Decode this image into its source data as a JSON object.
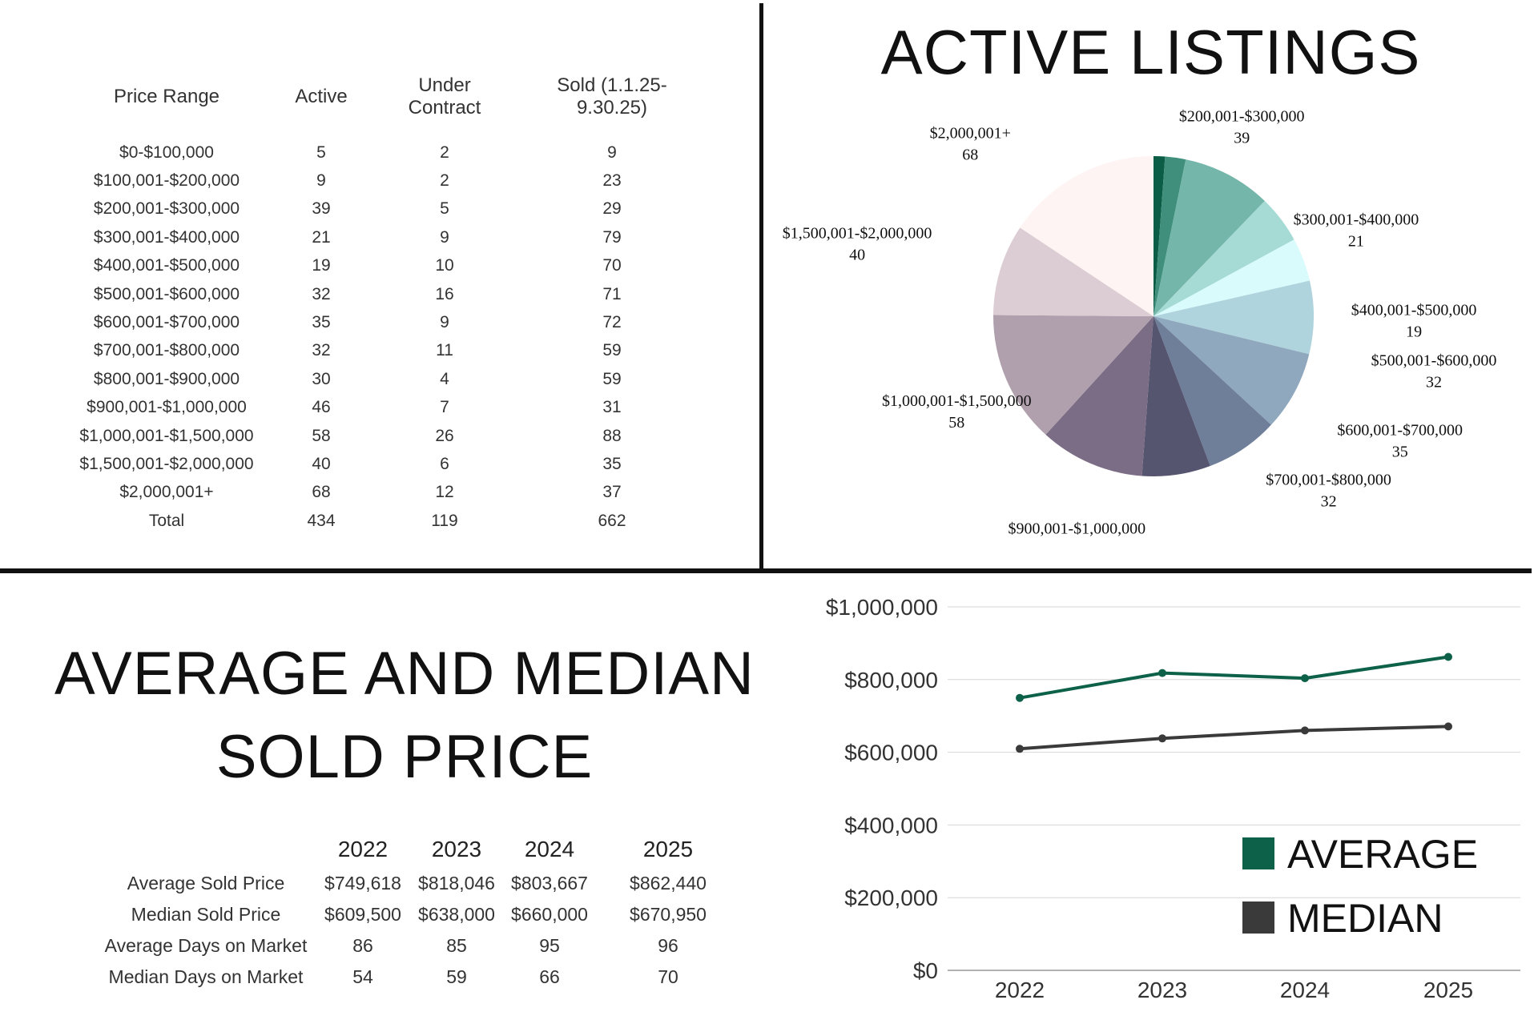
{
  "price_table": {
    "headers": [
      "Price Range",
      "Active",
      "Under Contract",
      "Sold (1.1.25-9.30.25)"
    ],
    "rows": [
      [
        "$0-$100,000",
        "5",
        "2",
        "9"
      ],
      [
        "$100,001-$200,000",
        "9",
        "2",
        "23"
      ],
      [
        "$200,001-$300,000",
        "39",
        "5",
        "29"
      ],
      [
        "$300,001-$400,000",
        "21",
        "9",
        "79"
      ],
      [
        "$400,001-$500,000",
        "19",
        "10",
        "70"
      ],
      [
        "$500,001-$600,000",
        "32",
        "16",
        "71"
      ],
      [
        "$600,001-$700,000",
        "35",
        "9",
        "72"
      ],
      [
        "$700,001-$800,000",
        "32",
        "11",
        "59"
      ],
      [
        "$800,001-$900,000",
        "30",
        "4",
        "59"
      ],
      [
        "$900,001-$1,000,000",
        "46",
        "7",
        "31"
      ],
      [
        "$1,000,001-$1,500,000",
        "58",
        "26",
        "88"
      ],
      [
        "$1,500,001-$2,000,000",
        "40",
        "6",
        "35"
      ],
      [
        "$2,000,001+",
        "68",
        "12",
        "37"
      ],
      [
        "Total",
        "434",
        "119",
        "662"
      ]
    ]
  },
  "pie_title": "ACTIVE LISTINGS",
  "bottom_title_line1": "AVERAGE AND MEDIAN",
  "bottom_title_line2": "SOLD PRICE",
  "stats_table": {
    "headers": [
      "",
      "2022",
      "2023",
      "2024",
      "2025"
    ],
    "rows": [
      [
        "Average Sold Price",
        "$749,618",
        "$818,046",
        "$803,667",
        "$862,440"
      ],
      [
        "Median Sold Price",
        "$609,500",
        "$638,000",
        "$660,000",
        "$670,950"
      ],
      [
        "Average Days on Market",
        "86",
        "85",
        "95",
        "96"
      ],
      [
        "Median Days on Market",
        "54",
        "59",
        "66",
        "70"
      ]
    ]
  },
  "chart_data": [
    {
      "type": "pie",
      "title": "ACTIVE LISTINGS",
      "labels": [
        "$0-$100,000",
        "$100,001-$200,000",
        "$200,001-$300,000",
        "$300,001-$400,000",
        "$400,001-$500,000",
        "$500,001-$600,000",
        "$600,001-$700,000",
        "$700,001-$800,000",
        "$800,001-$900,000",
        "$900,001-$1,000,000",
        "$1,000,001-$1,500,000",
        "$1,500,001-$2,000,000",
        "$2,000,001+"
      ],
      "values": [
        5,
        9,
        39,
        21,
        19,
        32,
        35,
        32,
        30,
        46,
        58,
        40,
        68
      ],
      "shown_labels": [
        "",
        "",
        "$200,001-$300,000",
        "$300,001-$400,000",
        "$400,001-$500,000",
        "$500,001-$600,000",
        "$600,001-$700,000",
        "$700,001-$800,000",
        "",
        "$900,001-$1,000,000",
        "$1,000,001-$1,500,000",
        "$1,500,001-$2,000,000",
        "$2,000,001+"
      ],
      "colors": [
        "#0b5e45",
        "#3f8f7c",
        "#74b6a9",
        "#a6dbd5",
        "#d9fbfc",
        "#afd4dd",
        "#8fa8be",
        "#6f7f9a",
        "#565570",
        "#7b6d85",
        "#b0a0ad",
        "#dcccd3",
        "#fff4f4"
      ]
    },
    {
      "type": "line",
      "x": [
        "2022",
        "2023",
        "2024",
        "2025"
      ],
      "series": [
        {
          "name": "AVERAGE",
          "values": [
            749618,
            818046,
            803667,
            862440
          ],
          "color": "#0c6148"
        },
        {
          "name": "MEDIAN",
          "values": [
            609500,
            638000,
            660000,
            670950
          ],
          "color": "#3a3a3a"
        }
      ],
      "ylim": [
        0,
        1000000
      ],
      "yticks": [
        "$0",
        "$200,000",
        "$400,000",
        "$600,000",
        "$800,000",
        "$1,000,000"
      ],
      "grid": true,
      "legend_position": "bottom-right"
    }
  ]
}
